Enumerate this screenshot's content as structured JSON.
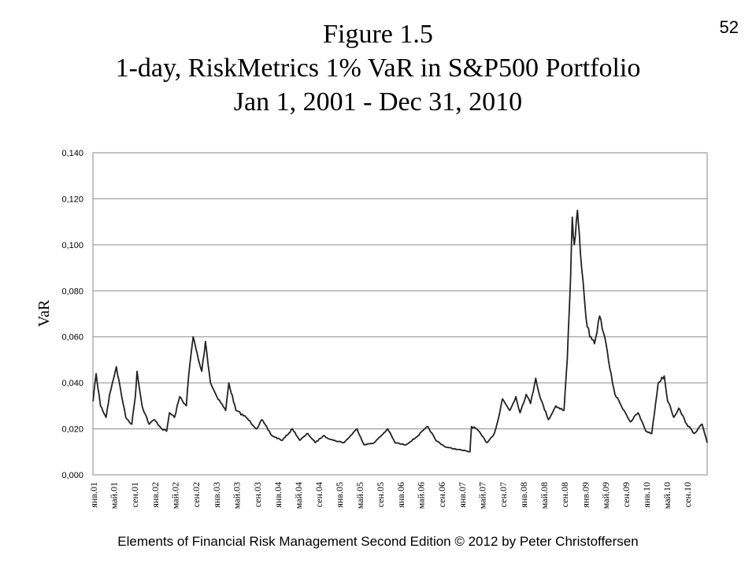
{
  "page_number": "52",
  "title": {
    "line1": "Figure 1.5",
    "line2": "1-day, RiskMetrics 1% VaR in S&P500 Portfolio",
    "line3": "Jan 1, 2001 - Dec 31, 2010"
  },
  "footer": "Elements of Financial Risk Management Second Edition © 2012  by Peter Christoffersen",
  "chart_data": {
    "type": "line",
    "ylabel": "VaR",
    "ylim": [
      0,
      0.14
    ],
    "yticks": [
      "0,000",
      "0,020",
      "0,040",
      "0,060",
      "0,080",
      "0,100",
      "0,120",
      "0,140"
    ],
    "xticks": [
      "янв.01",
      "май.01",
      "сен.01",
      "янв.02",
      "май.02",
      "сен.02",
      "янв.03",
      "май.03",
      "сен.03",
      "янв.04",
      "май.04",
      "сен.04",
      "янв.05",
      "май.05",
      "сен.05",
      "янв.06",
      "май.06",
      "сен.06",
      "янв.07",
      "май.07",
      "сен.07",
      "янв.08",
      "май.08",
      "сен.08",
      "янв.09",
      "май.09",
      "сен.09",
      "янв.10",
      "май.10",
      "сен.10"
    ],
    "grid": "horizontal",
    "series": [
      {
        "color": "#222222",
        "x": [
          "2001-01-02",
          "2001-01-20",
          "2001-02-15",
          "2001-03-20",
          "2001-04-10",
          "2001-05-20",
          "2001-07-15",
          "2001-08-20",
          "2001-09-10",
          "2001-09-20",
          "2001-10-20",
          "2001-12-01",
          "2002-01-01",
          "2002-02-15",
          "2002-03-15",
          "2002-04-01",
          "2002-05-01",
          "2002-06-01",
          "2002-07-10",
          "2002-07-25",
          "2002-08-20",
          "2002-09-20",
          "2002-10-10",
          "2002-11-01",
          "2002-12-01",
          "2003-01-01",
          "2003-03-01",
          "2003-03-20",
          "2003-05-01",
          "2003-07-01",
          "2003-09-01",
          "2003-10-01",
          "2003-12-01",
          "2004-02-01",
          "2004-04-01",
          "2004-05-15",
          "2004-07-01",
          "2004-08-15",
          "2004-10-01",
          "2004-12-01",
          "2005-02-01",
          "2005-04-20",
          "2005-06-01",
          "2005-08-01",
          "2005-10-20",
          "2005-12-01",
          "2006-02-01",
          "2006-04-01",
          "2006-06-15",
          "2006-08-01",
          "2006-10-01",
          "2006-12-15",
          "2007-02-20",
          "2007-03-01",
          "2007-04-01",
          "2007-06-01",
          "2007-07-15",
          "2007-08-10",
          "2007-09-01",
          "2007-10-15",
          "2007-11-20",
          "2007-12-15",
          "2008-01-20",
          "2008-02-15",
          "2008-03-17",
          "2008-04-15",
          "2008-06-01",
          "2008-07-15",
          "2008-09-01",
          "2008-09-20",
          "2008-10-10",
          "2008-10-20",
          "2008-11-01",
          "2008-11-20",
          "2008-12-01",
          "2008-12-15",
          "2009-01-10",
          "2009-02-01",
          "2009-03-01",
          "2009-04-01",
          "2009-05-01",
          "2009-06-01",
          "2009-07-01",
          "2009-08-01",
          "2009-09-01",
          "2009-10-01",
          "2009-11-15",
          "2010-01-01",
          "2010-02-05",
          "2010-03-15",
          "2010-04-20",
          "2010-05-10",
          "2010-05-25",
          "2010-06-15",
          "2010-07-15",
          "2010-09-01",
          "2010-10-15",
          "2010-12-01",
          "2010-12-31"
        ],
        "y": [
          0.032,
          0.044,
          0.03,
          0.025,
          0.035,
          0.047,
          0.025,
          0.022,
          0.034,
          0.045,
          0.03,
          0.022,
          0.024,
          0.02,
          0.019,
          0.027,
          0.025,
          0.034,
          0.03,
          0.044,
          0.06,
          0.05,
          0.045,
          0.058,
          0.04,
          0.035,
          0.028,
          0.04,
          0.028,
          0.025,
          0.02,
          0.024,
          0.017,
          0.015,
          0.02,
          0.015,
          0.018,
          0.014,
          0.017,
          0.015,
          0.014,
          0.02,
          0.013,
          0.014,
          0.02,
          0.014,
          0.013,
          0.016,
          0.021,
          0.015,
          0.012,
          0.011,
          0.01,
          0.021,
          0.02,
          0.014,
          0.018,
          0.025,
          0.033,
          0.028,
          0.034,
          0.027,
          0.035,
          0.031,
          0.042,
          0.033,
          0.024,
          0.03,
          0.028,
          0.05,
          0.085,
          0.112,
          0.1,
          0.115,
          0.105,
          0.09,
          0.068,
          0.06,
          0.057,
          0.069,
          0.06,
          0.046,
          0.035,
          0.031,
          0.027,
          0.023,
          0.027,
          0.019,
          0.018,
          0.04,
          0.043,
          0.032,
          0.03,
          0.025,
          0.029,
          0.022,
          0.018,
          0.022,
          0.014
        ]
      }
    ]
  }
}
